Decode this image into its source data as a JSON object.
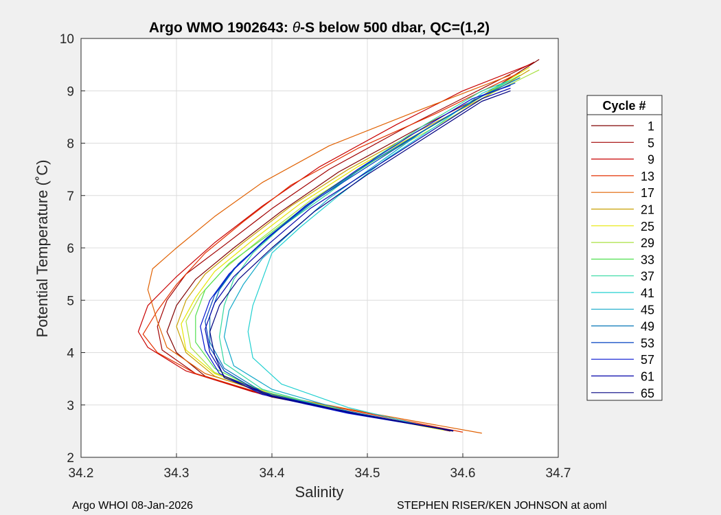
{
  "chart_data": {
    "type": "line",
    "title_prefix": "Argo WMO 1902643: ",
    "title_theta": "θ",
    "title_suffix": "-S below 500 dbar,  QC=(1,2)",
    "xlabel": "Salinity",
    "ylabel": "Potential Temperature (˚C)",
    "xlim": [
      34.2,
      34.7
    ],
    "ylim": [
      2,
      10
    ],
    "xticks": [
      "34.2",
      "34.3",
      "34.4",
      "34.5",
      "34.6",
      "34.7"
    ],
    "yticks": [
      "2",
      "3",
      "4",
      "5",
      "6",
      "7",
      "8",
      "9",
      "10"
    ],
    "grid": true,
    "legend_title": "Cycle #",
    "legend_position": "outside-right",
    "legend": [
      {
        "label": "1",
        "color": "#800000"
      },
      {
        "label": "5",
        "color": "#a00000"
      },
      {
        "label": "9",
        "color": "#c80000"
      },
      {
        "label": "13",
        "color": "#e43000"
      },
      {
        "label": "17",
        "color": "#e06000"
      },
      {
        "label": "21",
        "color": "#c8a000"
      },
      {
        "label": "25",
        "color": "#e6e600"
      },
      {
        "label": "29",
        "color": "#a8e040"
      },
      {
        "label": "33",
        "color": "#50e050"
      },
      {
        "label": "37",
        "color": "#30d8a0"
      },
      {
        "label": "41",
        "color": "#20d0d0"
      },
      {
        "label": "45",
        "color": "#10a8c8"
      },
      {
        "label": "49",
        "color": "#0878b8"
      },
      {
        "label": "53",
        "color": "#0040c0"
      },
      {
        "label": "57",
        "color": "#0010d0"
      },
      {
        "label": "61",
        "color": "#0000a8"
      },
      {
        "label": "65",
        "color": "#000080"
      }
    ],
    "series": [
      {
        "name": "1",
        "color": "#800000",
        "points": [
          [
            34.587,
            2.5
          ],
          [
            34.5,
            2.8
          ],
          [
            34.4,
            3.15
          ],
          [
            34.33,
            3.55
          ],
          [
            34.3,
            4.0
          ],
          [
            34.29,
            4.4
          ],
          [
            34.3,
            4.9
          ],
          [
            34.32,
            5.4
          ],
          [
            34.36,
            6.0
          ],
          [
            34.41,
            6.7
          ],
          [
            34.47,
            7.45
          ],
          [
            34.55,
            8.25
          ],
          [
            34.62,
            8.9
          ],
          [
            34.68,
            9.6
          ]
        ]
      },
      {
        "name": "5",
        "color": "#a00000",
        "points": [
          [
            34.585,
            2.52
          ],
          [
            34.49,
            2.82
          ],
          [
            34.39,
            3.2
          ],
          [
            34.32,
            3.6
          ],
          [
            34.285,
            4.05
          ],
          [
            34.28,
            4.5
          ],
          [
            34.29,
            5.0
          ],
          [
            34.31,
            5.5
          ],
          [
            34.35,
            6.05
          ],
          [
            34.4,
            6.75
          ],
          [
            34.46,
            7.5
          ],
          [
            34.54,
            8.3
          ],
          [
            34.61,
            8.95
          ],
          [
            34.675,
            9.55
          ]
        ]
      },
      {
        "name": "9",
        "color": "#c80000",
        "points": [
          [
            34.59,
            2.5
          ],
          [
            34.49,
            2.85
          ],
          [
            34.38,
            3.25
          ],
          [
            34.31,
            3.65
          ],
          [
            34.27,
            4.1
          ],
          [
            34.26,
            4.4
          ],
          [
            34.27,
            4.9
          ],
          [
            34.3,
            5.45
          ],
          [
            34.34,
            6.1
          ],
          [
            34.39,
            6.8
          ],
          [
            34.45,
            7.55
          ],
          [
            34.53,
            8.35
          ],
          [
            34.6,
            9.0
          ],
          [
            34.67,
            9.5
          ]
        ]
      },
      {
        "name": "13",
        "color": "#e43000",
        "points": [
          [
            34.6,
            2.48
          ],
          [
            34.5,
            2.84
          ],
          [
            34.39,
            3.22
          ],
          [
            34.32,
            3.6
          ],
          [
            34.28,
            4.0
          ],
          [
            34.265,
            4.35
          ],
          [
            34.28,
            4.8
          ],
          [
            34.3,
            5.3
          ],
          [
            34.33,
            5.9
          ],
          [
            34.37,
            6.5
          ],
          [
            34.42,
            7.2
          ],
          [
            34.49,
            7.9
          ],
          [
            34.57,
            8.55
          ],
          [
            34.66,
            9.35
          ]
        ]
      },
      {
        "name": "17",
        "color": "#e06000",
        "points": [
          [
            34.62,
            2.46
          ],
          [
            34.51,
            2.82
          ],
          [
            34.4,
            3.2
          ],
          [
            34.33,
            3.6
          ],
          [
            34.29,
            4.1
          ],
          [
            34.28,
            4.6
          ],
          [
            34.27,
            5.2
          ],
          [
            34.275,
            5.6
          ],
          [
            34.3,
            6.0
          ],
          [
            34.34,
            6.6
          ],
          [
            34.39,
            7.25
          ],
          [
            34.46,
            7.95
          ],
          [
            34.55,
            8.6
          ],
          [
            34.65,
            9.3
          ]
        ]
      },
      {
        "name": "21",
        "color": "#c8a000",
        "points": [
          [
            34.59,
            2.5
          ],
          [
            34.5,
            2.8
          ],
          [
            34.4,
            3.18
          ],
          [
            34.34,
            3.55
          ],
          [
            34.31,
            4.0
          ],
          [
            34.3,
            4.5
          ],
          [
            34.31,
            5.0
          ],
          [
            34.33,
            5.5
          ],
          [
            34.37,
            6.1
          ],
          [
            34.42,
            6.8
          ],
          [
            34.48,
            7.5
          ],
          [
            34.55,
            8.2
          ],
          [
            34.62,
            8.85
          ],
          [
            34.67,
            9.4
          ]
        ]
      },
      {
        "name": "25",
        "color": "#e6e600",
        "points": [
          [
            34.58,
            2.52
          ],
          [
            34.49,
            2.83
          ],
          [
            34.4,
            3.2
          ],
          [
            34.34,
            3.6
          ],
          [
            34.31,
            4.05
          ],
          [
            34.305,
            4.55
          ],
          [
            34.32,
            5.05
          ],
          [
            34.34,
            5.55
          ],
          [
            34.38,
            6.15
          ],
          [
            34.43,
            6.85
          ],
          [
            34.49,
            7.55
          ],
          [
            34.56,
            8.25
          ],
          [
            34.62,
            8.9
          ],
          [
            34.67,
            9.45
          ]
        ]
      },
      {
        "name": "29",
        "color": "#a8e040",
        "points": [
          [
            34.58,
            2.53
          ],
          [
            34.49,
            2.84
          ],
          [
            34.4,
            3.22
          ],
          [
            34.34,
            3.62
          ],
          [
            34.315,
            4.1
          ],
          [
            34.31,
            4.6
          ],
          [
            34.325,
            5.1
          ],
          [
            34.35,
            5.6
          ],
          [
            34.39,
            6.2
          ],
          [
            34.44,
            6.9
          ],
          [
            34.5,
            7.6
          ],
          [
            34.57,
            8.3
          ],
          [
            34.63,
            8.95
          ],
          [
            34.68,
            9.4
          ]
        ]
      },
      {
        "name": "33",
        "color": "#50e050",
        "points": [
          [
            34.575,
            2.55
          ],
          [
            34.48,
            2.86
          ],
          [
            34.39,
            3.25
          ],
          [
            34.34,
            3.7
          ],
          [
            34.32,
            4.2
          ],
          [
            34.32,
            4.7
          ],
          [
            34.33,
            5.2
          ],
          [
            34.355,
            5.7
          ],
          [
            34.4,
            6.3
          ],
          [
            34.45,
            7.0
          ],
          [
            34.51,
            7.7
          ],
          [
            34.57,
            8.35
          ],
          [
            34.63,
            9.0
          ],
          [
            34.66,
            9.3
          ]
        ]
      },
      {
        "name": "37",
        "color": "#30d8a0",
        "points": [
          [
            34.57,
            2.57
          ],
          [
            34.47,
            2.9
          ],
          [
            34.39,
            3.3
          ],
          [
            34.35,
            3.8
          ],
          [
            34.345,
            4.3
          ],
          [
            34.35,
            4.9
          ],
          [
            34.36,
            5.4
          ],
          [
            34.38,
            5.9
          ],
          [
            34.41,
            6.4
          ],
          [
            34.46,
            7.05
          ],
          [
            34.51,
            7.75
          ],
          [
            34.56,
            8.35
          ],
          [
            34.62,
            9.0
          ],
          [
            34.65,
            9.2
          ]
        ]
      },
      {
        "name": "41",
        "color": "#20d0d0",
        "points": [
          [
            34.56,
            2.6
          ],
          [
            34.48,
            2.95
          ],
          [
            34.41,
            3.4
          ],
          [
            34.38,
            3.9
          ],
          [
            34.375,
            4.4
          ],
          [
            34.38,
            4.9
          ],
          [
            34.39,
            5.4
          ],
          [
            34.4,
            5.9
          ],
          [
            34.43,
            6.4
          ],
          [
            34.47,
            7.0
          ],
          [
            34.52,
            7.7
          ],
          [
            34.57,
            8.3
          ],
          [
            34.62,
            8.95
          ],
          [
            34.65,
            9.2
          ]
        ]
      },
      {
        "name": "45",
        "color": "#10a8c8",
        "points": [
          [
            34.575,
            2.55
          ],
          [
            34.48,
            2.88
          ],
          [
            34.4,
            3.3
          ],
          [
            34.36,
            3.75
          ],
          [
            34.35,
            4.3
          ],
          [
            34.355,
            4.8
          ],
          [
            34.37,
            5.3
          ],
          [
            34.39,
            5.8
          ],
          [
            34.42,
            6.3
          ],
          [
            34.46,
            6.95
          ],
          [
            34.51,
            7.6
          ],
          [
            34.56,
            8.25
          ],
          [
            34.62,
            8.9
          ],
          [
            34.66,
            9.25
          ]
        ]
      },
      {
        "name": "49",
        "color": "#0878b8",
        "points": [
          [
            34.58,
            2.53
          ],
          [
            34.48,
            2.86
          ],
          [
            34.39,
            3.25
          ],
          [
            34.35,
            3.7
          ],
          [
            34.335,
            4.2
          ],
          [
            34.335,
            4.7
          ],
          [
            34.345,
            5.2
          ],
          [
            34.365,
            5.7
          ],
          [
            34.4,
            6.25
          ],
          [
            34.445,
            6.9
          ],
          [
            34.5,
            7.6
          ],
          [
            34.56,
            8.25
          ],
          [
            34.62,
            8.9
          ],
          [
            34.66,
            9.25
          ]
        ]
      },
      {
        "name": "53",
        "color": "#0040c0",
        "points": [
          [
            34.585,
            2.52
          ],
          [
            34.48,
            2.85
          ],
          [
            34.39,
            3.22
          ],
          [
            34.35,
            3.65
          ],
          [
            34.335,
            4.1
          ],
          [
            34.33,
            4.6
          ],
          [
            34.34,
            5.1
          ],
          [
            34.36,
            5.6
          ],
          [
            34.395,
            6.2
          ],
          [
            34.44,
            6.85
          ],
          [
            34.5,
            7.55
          ],
          [
            34.56,
            8.25
          ],
          [
            34.62,
            8.9
          ],
          [
            34.655,
            9.15
          ]
        ]
      },
      {
        "name": "57",
        "color": "#0010d0",
        "points": [
          [
            34.585,
            2.52
          ],
          [
            34.48,
            2.84
          ],
          [
            34.39,
            3.2
          ],
          [
            34.345,
            3.6
          ],
          [
            34.33,
            4.05
          ],
          [
            34.325,
            4.5
          ],
          [
            34.335,
            5.0
          ],
          [
            34.355,
            5.5
          ],
          [
            34.39,
            6.1
          ],
          [
            34.435,
            6.8
          ],
          [
            34.49,
            7.5
          ],
          [
            34.55,
            8.2
          ],
          [
            34.61,
            8.85
          ],
          [
            34.65,
            9.1
          ]
        ]
      },
      {
        "name": "61",
        "color": "#0000a8",
        "points": [
          [
            34.59,
            2.51
          ],
          [
            34.49,
            2.83
          ],
          [
            34.4,
            3.18
          ],
          [
            34.35,
            3.55
          ],
          [
            34.335,
            4.0
          ],
          [
            34.33,
            4.45
          ],
          [
            34.34,
            4.95
          ],
          [
            34.36,
            5.45
          ],
          [
            34.395,
            6.05
          ],
          [
            34.44,
            6.75
          ],
          [
            34.5,
            7.45
          ],
          [
            34.56,
            8.15
          ],
          [
            34.62,
            8.85
          ],
          [
            34.65,
            9.05
          ]
        ]
      },
      {
        "name": "65",
        "color": "#000080",
        "points": [
          [
            34.59,
            2.5
          ],
          [
            34.49,
            2.82
          ],
          [
            34.4,
            3.16
          ],
          [
            34.35,
            3.52
          ],
          [
            34.34,
            3.95
          ],
          [
            34.335,
            4.4
          ],
          [
            34.345,
            4.9
          ],
          [
            34.365,
            5.4
          ],
          [
            34.4,
            6.0
          ],
          [
            34.445,
            6.7
          ],
          [
            34.5,
            7.4
          ],
          [
            34.56,
            8.1
          ],
          [
            34.62,
            8.8
          ],
          [
            34.65,
            9.0
          ]
        ]
      }
    ]
  },
  "footer": {
    "left": "Argo WHOI 08-Jan-2026",
    "right": "STEPHEN RISER/KEN JOHNSON at aoml"
  }
}
